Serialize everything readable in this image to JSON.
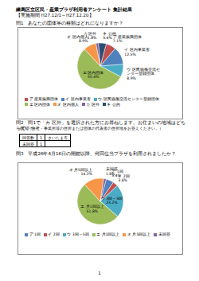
{
  "header": {
    "title": "練馬区立区民・産業プラザ利用者アンケート 集計結果",
    "subtitle": "【実施期間 H27.12/1～H27.12.20】"
  },
  "chart_data": [
    {
      "type": "pie",
      "title": "問1　あなたの団体等の種類はどれになりますか？",
      "categories": [
        "ア 産業振興団体",
        "イ 区内事業者",
        "ウ 区民協働交流センター登録団体",
        "エ 区内団体",
        "オ 区内個人",
        "カ 区外",
        "キ 公的"
      ],
      "values": [
        7.1,
        12.5,
        8.9,
        55.4,
        8.9,
        1.8,
        5.4
      ],
      "value_labels": [
        "7.1%",
        "12.5%",
        "8.9%",
        "55.4%",
        "8.9%",
        "1.8%",
        "5.4%"
      ],
      "colors": [
        "#c0504d",
        "#4f81bd",
        "#4bacc6",
        "#9bbb59",
        "#f79646",
        "#8064a2",
        "#2c4d75"
      ],
      "data_labels": true,
      "legend": "bottom"
    },
    {
      "type": "pie",
      "title": "問3　平成26年4月16日の開館以降、何回位当プラザを利用されましたか？",
      "categories": [
        "ア 1回",
        "イ 2回",
        "ウ 3回～5回",
        "エ 月1回以上",
        "オ 月5回以上",
        "未回答"
      ],
      "values": [
        5.4,
        3.6,
        23.2,
        51.8,
        14.2,
        1.8
      ],
      "value_labels": [
        "5.4%",
        "3.6%",
        "23.2%",
        "51.8%",
        "14.2%",
        "1.8%"
      ],
      "colors": [
        "#4f81bd",
        "#c0504d",
        "#4bacc6",
        "#9bbb59",
        "#f79646",
        "#8064a2"
      ],
      "data_labels": true,
      "legend": "bottom"
    }
  ],
  "table": {
    "question": "問2　問1で「カ 区外」を選択された方にお尋ねします。お住まいの地域はどちらですか？",
    "note": "（個人・会社・事業所等の住所または団体の代表者の住所地をお答えください。）",
    "rows": [
      [
        "回答数",
        "1",
        "さいたま市"
      ],
      [
        "未回答",
        "1"
      ]
    ]
  },
  "page_number": "1"
}
